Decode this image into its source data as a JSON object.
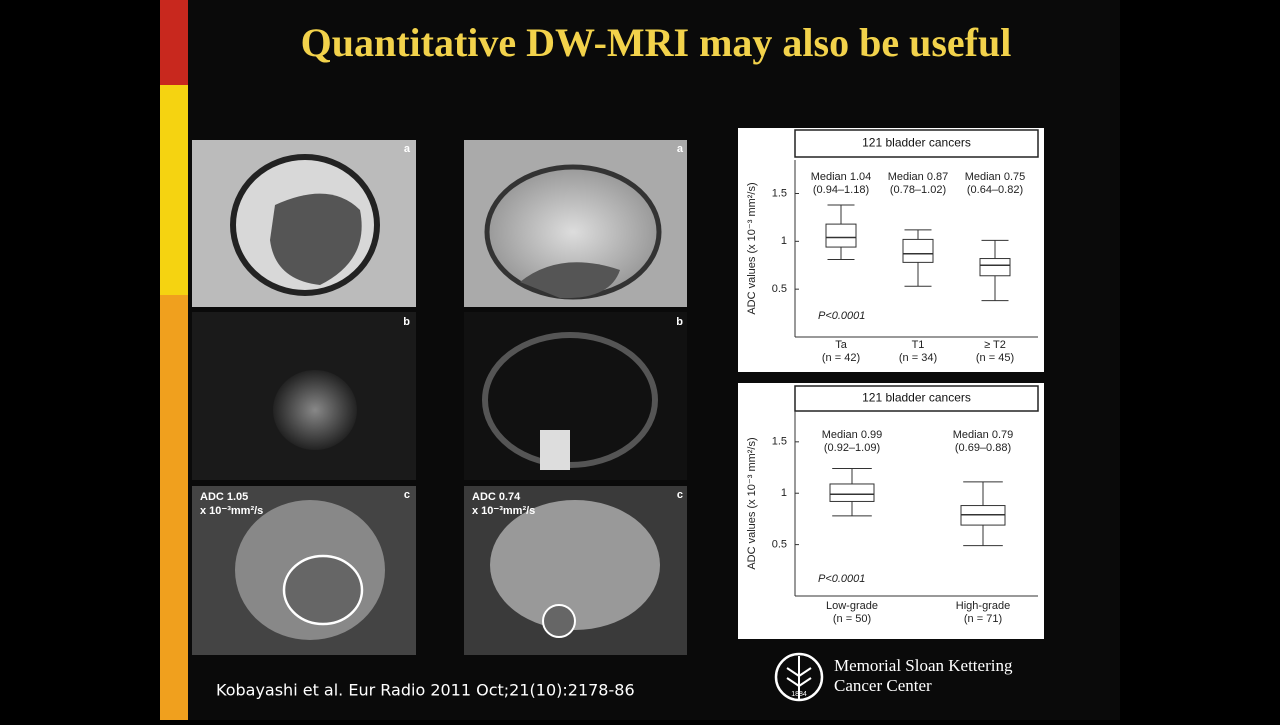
{
  "slide": {
    "title": "Quantitative DW-MRI may also be useful",
    "citation": "Kobayashi et al. Eur Radio 2011 Oct;21(10):2178-86",
    "images": [
      {
        "panels": [
          {
            "letter": "a"
          },
          {
            "letter": "b"
          },
          {
            "letter": "c",
            "adc": "ADC 1.05",
            "unit": "x 10⁻³mm²/s"
          }
        ]
      },
      {
        "panels": [
          {
            "letter": "a"
          },
          {
            "letter": "b"
          },
          {
            "letter": "c",
            "adc": "ADC 0.74",
            "unit": "x 10⁻³mm²/s"
          }
        ]
      }
    ],
    "logo": {
      "line1": "Memorial Sloan Kettering",
      "line2": "Cancer Center",
      "year": "1884"
    }
  },
  "chart_data": [
    {
      "type": "box",
      "title": "121 bladder cancers",
      "ylabel": "ADC values (x 10⁻³ mm²/s)",
      "categories": [
        "Ta",
        "T1",
        "≥ T2"
      ],
      "counts": [
        "(n = 42)",
        "(n = 34)",
        "(n = 45)"
      ],
      "whisker_low": [
        0.81,
        0.53,
        0.38
      ],
      "q1": [
        0.94,
        0.78,
        0.64
      ],
      "median": [
        1.04,
        0.87,
        0.75
      ],
      "q3": [
        1.18,
        1.02,
        0.82
      ],
      "whisker_high": [
        1.38,
        1.12,
        1.01
      ],
      "median_labels": [
        "Median 1.04",
        "Median 0.87",
        "Median 0.75"
      ],
      "range_labels": [
        "(0.94–1.18)",
        "(0.78–1.02)",
        "(0.64–0.82)"
      ],
      "annotation": "P<0.0001",
      "ylim": [
        0,
        1.85
      ],
      "yticks": [
        0.5,
        1,
        1.5
      ]
    },
    {
      "type": "box",
      "title": "121 bladder cancers",
      "ylabel": "ADC values (x 10⁻³ mm²/s)",
      "categories": [
        "Low-grade",
        "High-grade"
      ],
      "counts": [
        "(n = 50)",
        "(n = 71)"
      ],
      "whisker_low": [
        0.78,
        0.49
      ],
      "q1": [
        0.92,
        0.69
      ],
      "median": [
        0.99,
        0.79
      ],
      "q3": [
        1.09,
        0.88
      ],
      "whisker_high": [
        1.24,
        1.11
      ],
      "median_labels": [
        "Median 0.99",
        "Median 0.79"
      ],
      "range_labels": [
        "(0.92–1.09)",
        "(0.69–0.88)"
      ],
      "annotation": "P<0.0001",
      "ylim": [
        0,
        1.8
      ],
      "yticks": [
        0.5,
        1,
        1.5
      ]
    }
  ]
}
